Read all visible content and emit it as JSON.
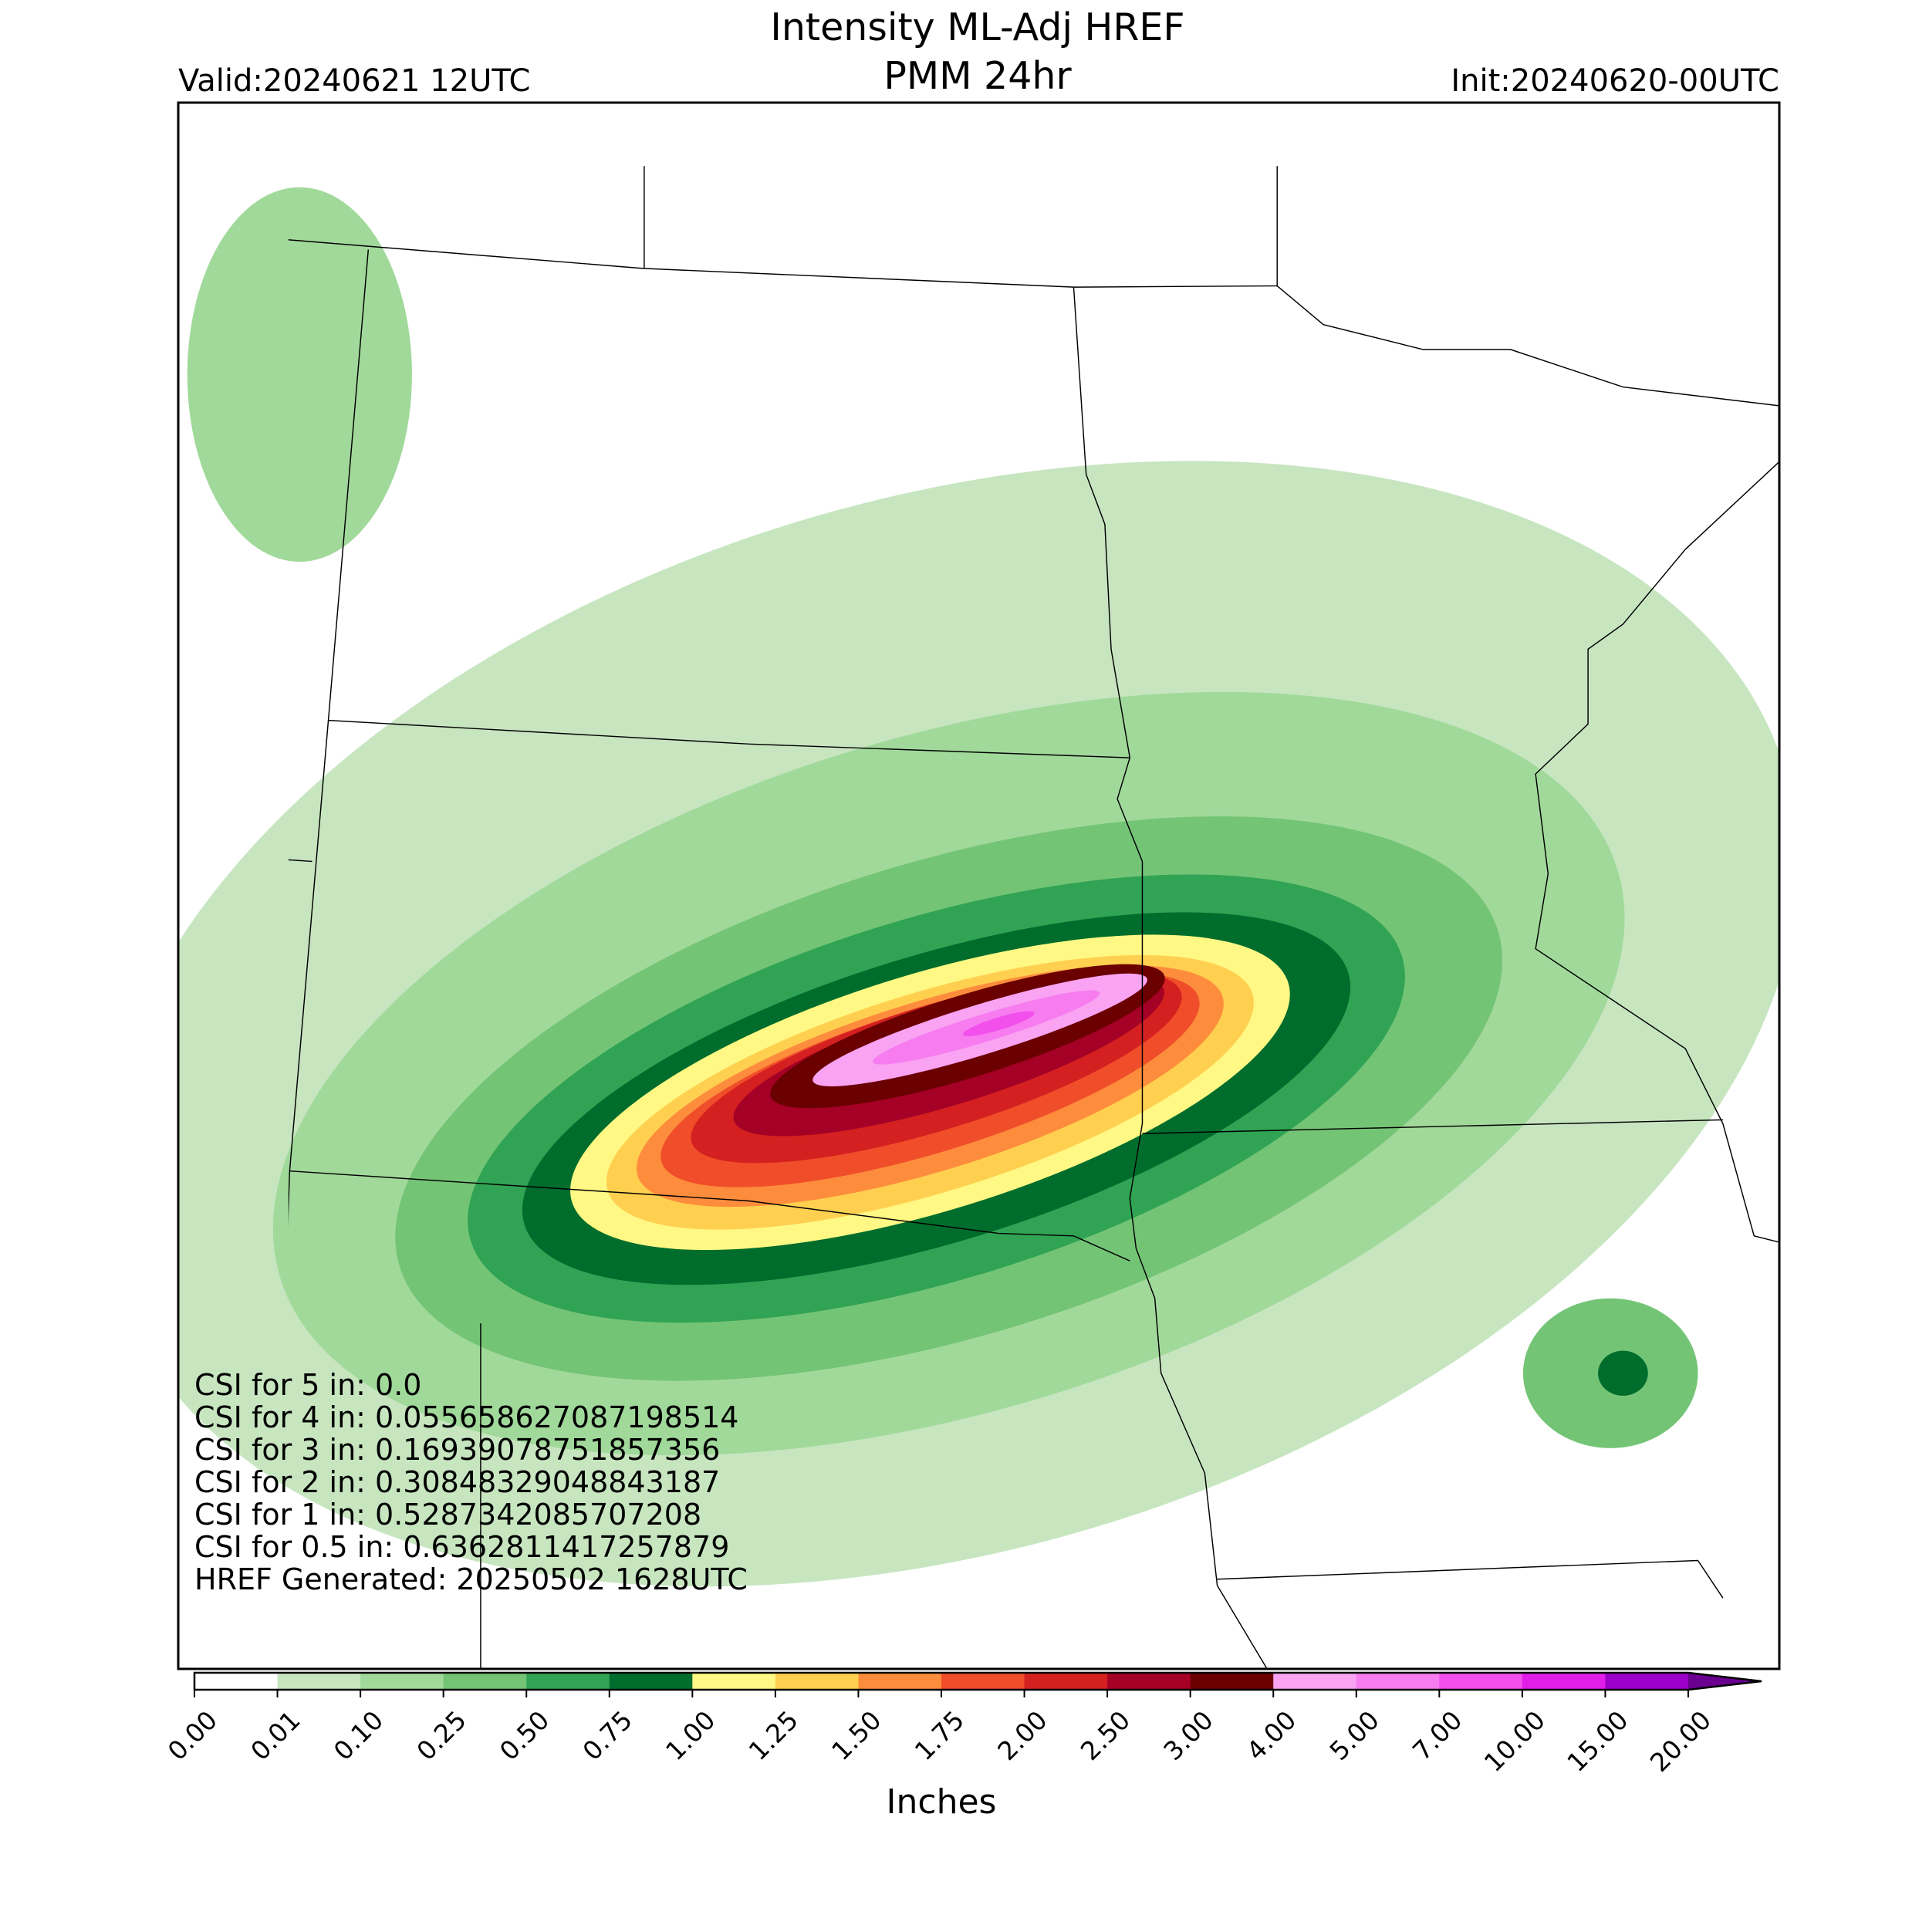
{
  "map": {
    "title": "Intensity ML-Adj HREF",
    "subtitle": "PMM 24hr",
    "valid": "Valid:20240621 12UTC",
    "init": "Init:20240620-00UTC",
    "annotations": [
      "CSI for 5 in: 0.0",
      "CSI for 4 in: 0.05565862708719851​4",
      "CSI for 3 in: 0.16939078751857356",
      "CSI for 2 in: 0.30848329048843187",
      "CSI for 1 in: 0.5287342085707208",
      "CSI for 0.5 in: 0.6362811417257879",
      "HREF Generated: 20250502 1628UTC"
    ],
    "colorbar": {
      "label": "Inches",
      "ticks": [
        {
          "value": 0,
          "label": "0.00"
        },
        {
          "value": 0.01,
          "label": "0.01"
        },
        {
          "value": 0.1,
          "label": "0.10"
        },
        {
          "value": 0.25,
          "label": "0.25"
        },
        {
          "value": 0.5,
          "label": "0.50"
        },
        {
          "value": 0.75,
          "label": "0.75"
        },
        {
          "value": 1,
          "label": "1.00"
        },
        {
          "value": 1.25,
          "label": "1.25"
        },
        {
          "value": 1.5,
          "label": "1.50"
        },
        {
          "value": 1.75,
          "label": "1.75"
        },
        {
          "value": 2,
          "label": "2.00"
        },
        {
          "value": 2.5,
          "label": "2.50"
        },
        {
          "value": 3,
          "label": "3.00"
        },
        {
          "value": 4,
          "label": "4.00"
        },
        {
          "value": 5,
          "label": "5.00"
        },
        {
          "value": 7,
          "label": "7.00"
        },
        {
          "value": 10,
          "label": "10.00"
        },
        {
          "value": 15,
          "label": "15.00"
        },
        {
          "value": 20,
          "label": "20.00"
        }
      ],
      "colors": [
        "#ffffff",
        "#c7e6c0",
        "#a1d99b",
        "#74c476",
        "#31a354",
        "#006d2c",
        "#fff884",
        "#ffd050",
        "#fd8d3c",
        "#f04e2a",
        "#d42020",
        "#a50026",
        "#6b0000",
        "#f9a3f2",
        "#f77cf0",
        "#f24fec",
        "#e01ee8",
        "#9b00c8"
      ],
      "extend_color": "#6a0090"
    }
  }
}
